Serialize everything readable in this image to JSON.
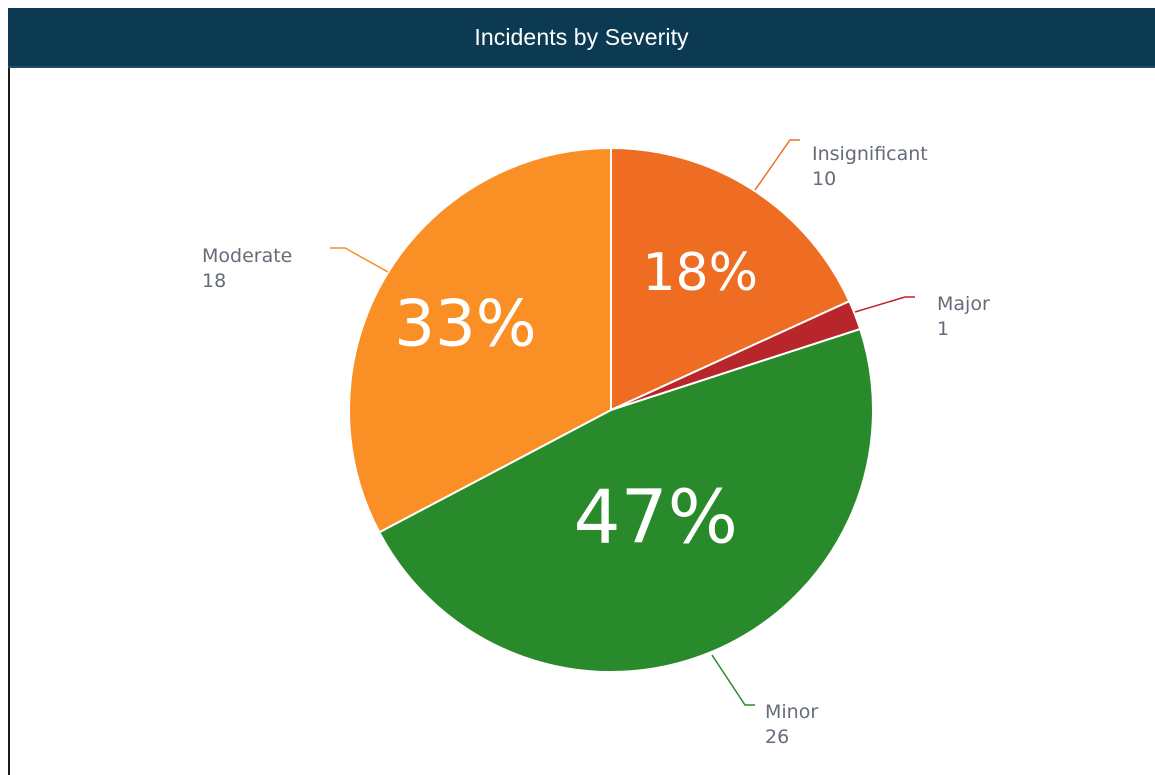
{
  "chart_data": {
    "type": "pie",
    "title": "Incidents by Severity",
    "slices": [
      {
        "category": "Insignificant",
        "value": 10,
        "percent_label": "18%",
        "color": "#ee6d22"
      },
      {
        "category": "Major",
        "value": 1,
        "percent_label": "",
        "color": "#b8262c"
      },
      {
        "category": "Minor",
        "value": 26,
        "percent_label": "47%",
        "color": "#288a2a"
      },
      {
        "category": "Moderate",
        "value": 18,
        "percent_label": "33%",
        "color": "#f98f25"
      }
    ],
    "callouts": [
      {
        "name": "Insignificant",
        "value": "10"
      },
      {
        "name": "Major",
        "value": "1"
      },
      {
        "name": "Minor",
        "value": "26"
      },
      {
        "name": "Moderate",
        "value": "18"
      }
    ],
    "header_color": "#0b3a52"
  }
}
